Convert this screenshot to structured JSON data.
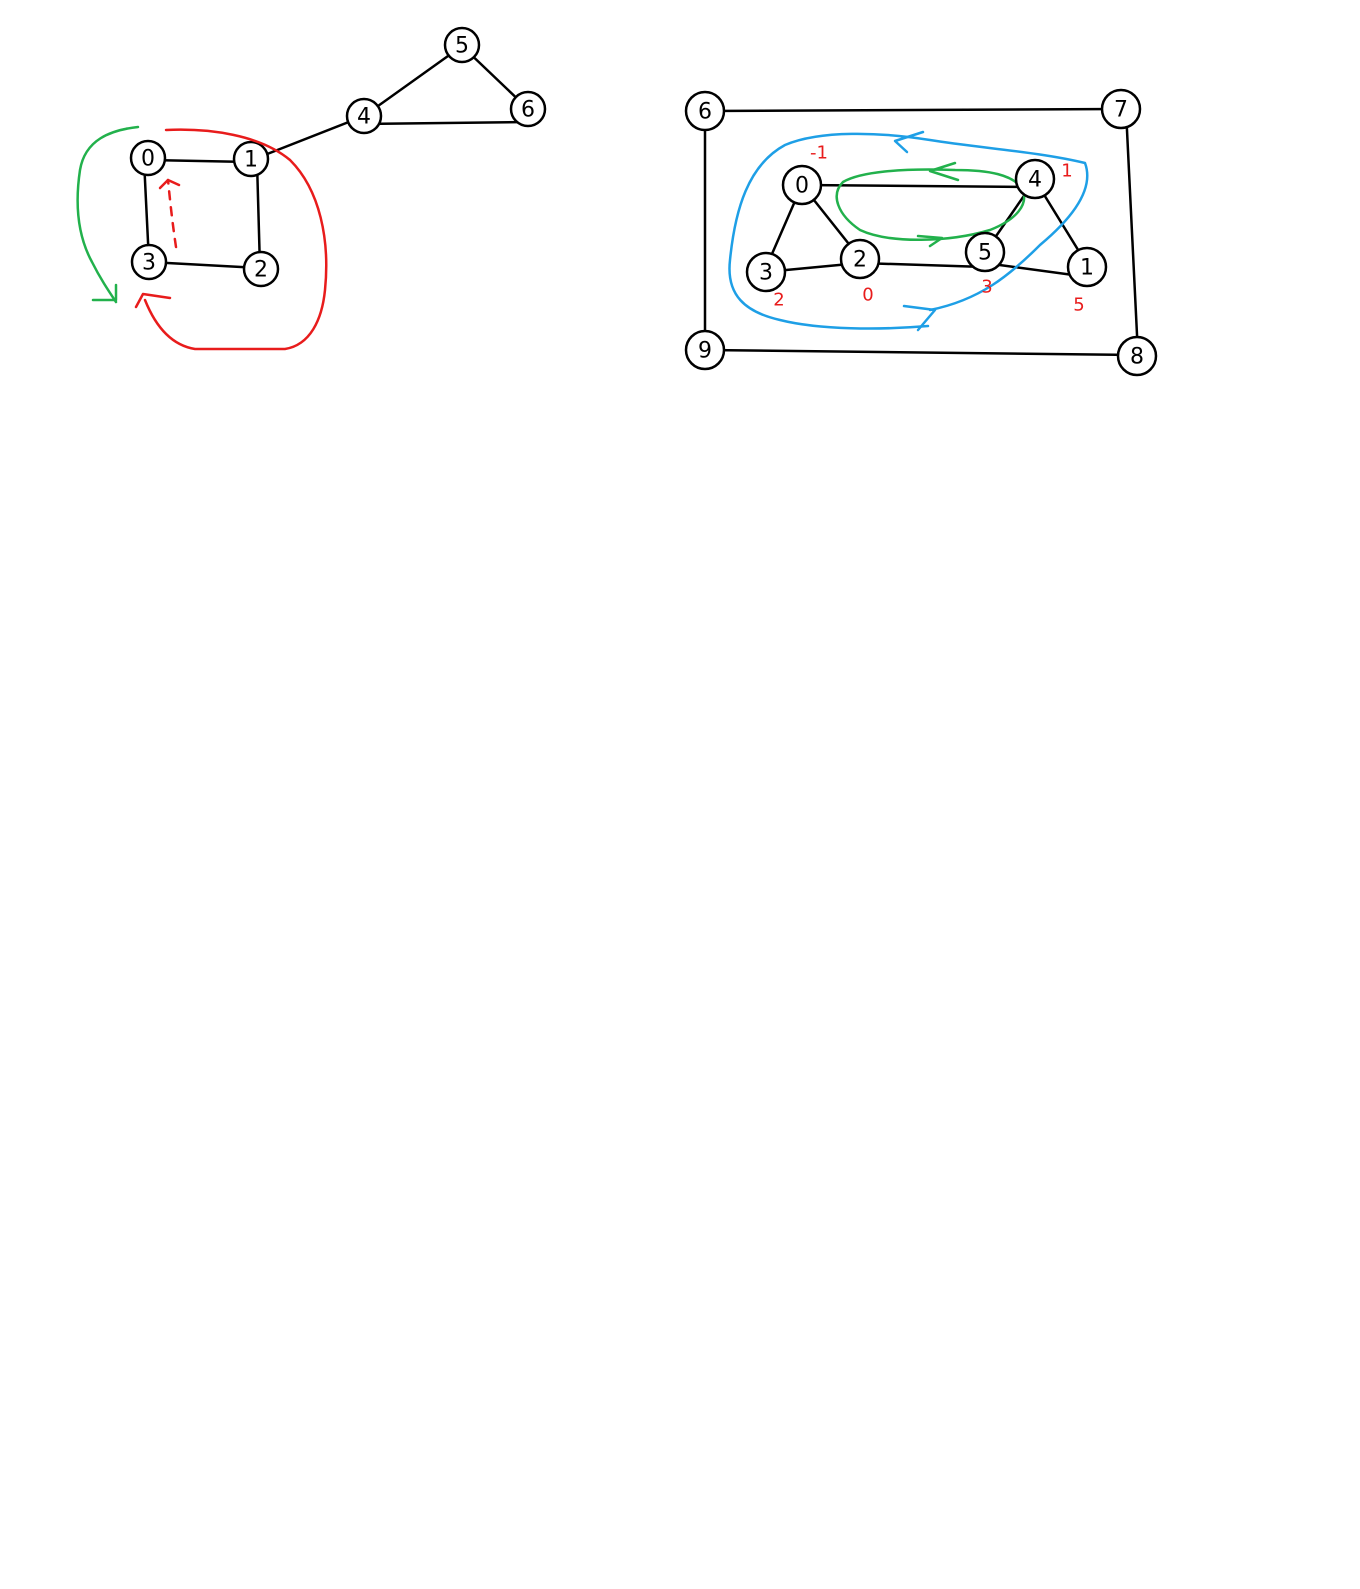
{
  "colors": {
    "red": "#e81c1c",
    "green": "#22b14c",
    "blue": "#1e9fe6",
    "node_stroke": "#000000"
  },
  "left_graph": {
    "nodes": [
      {
        "id": "0",
        "label": "0"
      },
      {
        "id": "1",
        "label": "1"
      },
      {
        "id": "2",
        "label": "2"
      },
      {
        "id": "3",
        "label": "3"
      },
      {
        "id": "4",
        "label": "4"
      },
      {
        "id": "5",
        "label": "5"
      },
      {
        "id": "6",
        "label": "6"
      }
    ],
    "edges": [
      [
        "0",
        "1"
      ],
      [
        "1",
        "2"
      ],
      [
        "2",
        "3"
      ],
      [
        "3",
        "0"
      ],
      [
        "1",
        "4"
      ],
      [
        "4",
        "5"
      ],
      [
        "5",
        "6"
      ],
      [
        "4",
        "6"
      ]
    ]
  },
  "right_graph": {
    "nodes": [
      {
        "id": "6",
        "label": "6"
      },
      {
        "id": "7",
        "label": "7"
      },
      {
        "id": "8",
        "label": "8"
      },
      {
        "id": "9",
        "label": "9"
      },
      {
        "id": "0",
        "label": "0"
      },
      {
        "id": "2",
        "label": "2"
      },
      {
        "id": "3",
        "label": "3"
      },
      {
        "id": "4",
        "label": "4"
      },
      {
        "id": "5",
        "label": "5"
      },
      {
        "id": "1",
        "label": "1"
      }
    ],
    "edges": [
      [
        "6",
        "7"
      ],
      [
        "7",
        "8"
      ],
      [
        "8",
        "9"
      ],
      [
        "9",
        "6"
      ],
      [
        "0",
        "3"
      ],
      [
        "0",
        "2"
      ],
      [
        "3",
        "2"
      ],
      [
        "2",
        "5"
      ],
      [
        "0",
        "4"
      ],
      [
        "4",
        "5"
      ],
      [
        "4",
        "1"
      ],
      [
        "5",
        "1"
      ]
    ],
    "annotations": [
      {
        "node": "0",
        "text": "-1"
      },
      {
        "node": "4",
        "text": "1"
      },
      {
        "node": "3",
        "text": "2"
      },
      {
        "node": "2",
        "text": "0"
      },
      {
        "node": "5",
        "text": "3"
      },
      {
        "node": "1",
        "text": "5"
      }
    ]
  }
}
